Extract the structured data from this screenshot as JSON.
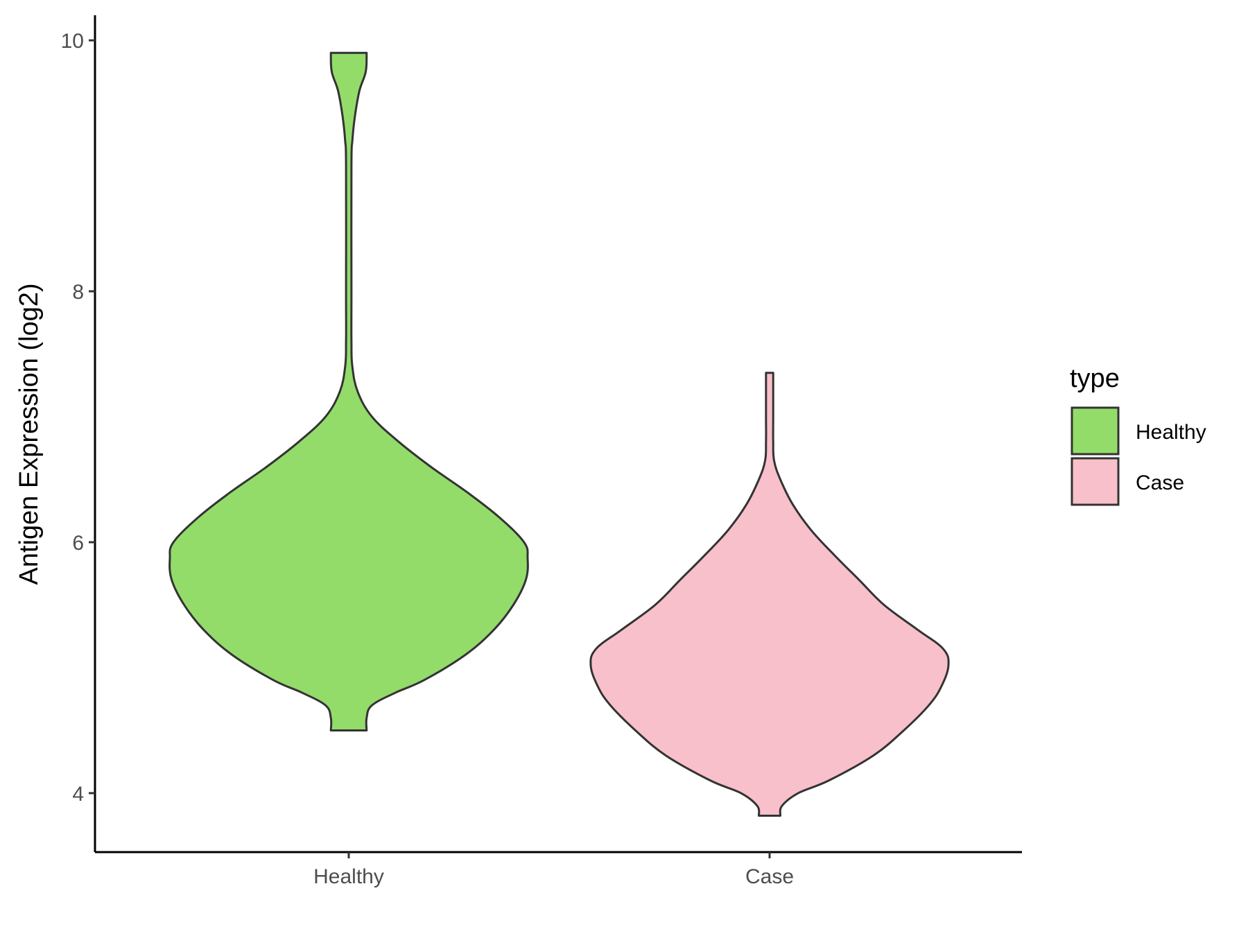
{
  "chart_data": {
    "type": "violin",
    "title": "",
    "xlabel": "",
    "ylabel": "Antigen Expression (log2)",
    "ylim": [
      3.53,
      10.2
    ],
    "yticks": [
      4,
      6,
      8,
      10
    ],
    "categories": [
      "Healthy",
      "Case"
    ],
    "legend": {
      "title": "type",
      "placement": "right",
      "entries": [
        {
          "label": "Healthy",
          "color": "#93DC6A"
        },
        {
          "label": "Case",
          "color": "#F8C0CA"
        }
      ]
    },
    "grid": false,
    "series": [
      {
        "name": "Healthy",
        "color": "#93DC6A",
        "min": 4.5,
        "max": 9.9,
        "density": [
          [
            4.5,
            0.1
          ],
          [
            4.6,
            0.1
          ],
          [
            4.7,
            0.13
          ],
          [
            4.8,
            0.26
          ],
          [
            4.9,
            0.42
          ],
          [
            5.1,
            0.65
          ],
          [
            5.3,
            0.81
          ],
          [
            5.5,
            0.92
          ],
          [
            5.7,
            0.99
          ],
          [
            5.87,
            1.0
          ],
          [
            6.0,
            0.98
          ],
          [
            6.2,
            0.84
          ],
          [
            6.4,
            0.66
          ],
          [
            6.6,
            0.46
          ],
          [
            6.8,
            0.28
          ],
          [
            7.0,
            0.13
          ],
          [
            7.2,
            0.05
          ],
          [
            7.4,
            0.02
          ],
          [
            7.6,
            0.015
          ],
          [
            8.0,
            0.015
          ],
          [
            9.0,
            0.015
          ],
          [
            9.2,
            0.02
          ],
          [
            9.4,
            0.035
          ],
          [
            9.6,
            0.06
          ],
          [
            9.75,
            0.095
          ],
          [
            9.9,
            0.1
          ]
        ]
      },
      {
        "name": "Case",
        "color": "#F8C0CA",
        "min": 3.82,
        "max": 7.35,
        "density": [
          [
            3.82,
            0.06
          ],
          [
            3.9,
            0.07
          ],
          [
            4.0,
            0.16
          ],
          [
            4.1,
            0.33
          ],
          [
            4.3,
            0.58
          ],
          [
            4.5,
            0.75
          ],
          [
            4.7,
            0.89
          ],
          [
            4.85,
            0.96
          ],
          [
            5.02,
            1.0
          ],
          [
            5.15,
            0.97
          ],
          [
            5.3,
            0.83
          ],
          [
            5.5,
            0.64
          ],
          [
            5.7,
            0.5
          ],
          [
            5.9,
            0.36
          ],
          [
            6.1,
            0.23
          ],
          [
            6.3,
            0.13
          ],
          [
            6.5,
            0.06
          ],
          [
            6.65,
            0.025
          ],
          [
            6.8,
            0.02
          ],
          [
            7.0,
            0.02
          ],
          [
            7.2,
            0.02
          ],
          [
            7.35,
            0.02
          ]
        ]
      }
    ]
  }
}
